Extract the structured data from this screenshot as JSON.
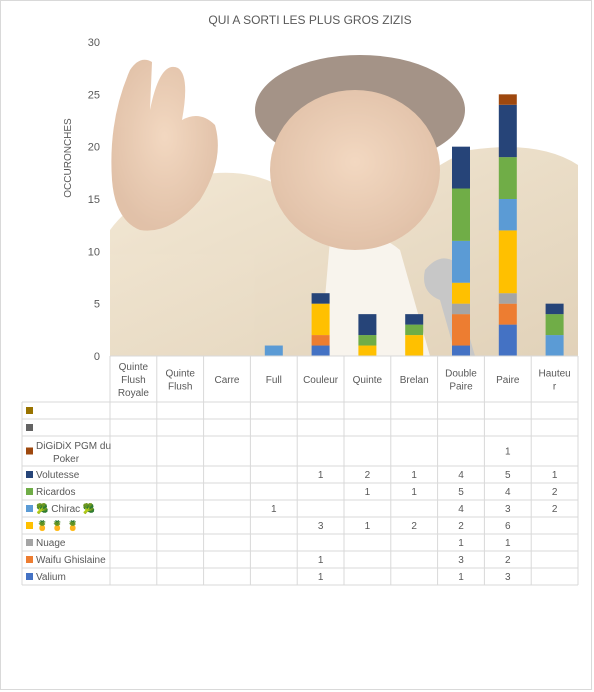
{
  "chart_data": {
    "type": "bar",
    "stacked": true,
    "title": "QUI A SORTI LES PLUS GROS ZIZIS",
    "xlabel": "",
    "ylabel": "OCCURONCHES",
    "ylim": [
      0,
      30
    ],
    "yticks": [
      0,
      5,
      10,
      15,
      20,
      25,
      30
    ],
    "grid": false,
    "legend": "data-table",
    "background_photo": true,
    "categories": [
      [
        "Quinte",
        "Flush",
        "Royale"
      ],
      [
        "Quinte",
        "Flush"
      ],
      [
        "Carre"
      ],
      [
        "Full"
      ],
      [
        "Couleur"
      ],
      [
        "Quinte"
      ],
      [
        "Brelan"
      ],
      [
        "Double",
        "Paire"
      ],
      [
        "Paire"
      ],
      [
        "Hauteu",
        "r"
      ]
    ],
    "series": [
      {
        "name": "Valium",
        "color": "#4472c4",
        "values": [
          null,
          null,
          null,
          null,
          1,
          null,
          null,
          1,
          3,
          null
        ]
      },
      {
        "name": "Waifu Ghislaine",
        "color": "#ed7d31",
        "values": [
          null,
          null,
          null,
          null,
          1,
          null,
          null,
          3,
          2,
          null
        ]
      },
      {
        "name": "Nuage",
        "color": "#a5a5a5",
        "values": [
          null,
          null,
          null,
          null,
          null,
          null,
          null,
          1,
          1,
          null
        ]
      },
      {
        "name": "🍍 🍍 🍍",
        "color": "#ffc000",
        "values": [
          null,
          null,
          null,
          null,
          3,
          1,
          2,
          2,
          6,
          null
        ]
      },
      {
        "name": "🥦 Chirac 🥦",
        "color": "#5b9bd5",
        "values": [
          null,
          null,
          null,
          1,
          null,
          null,
          null,
          4,
          3,
          2
        ]
      },
      {
        "name": "Ricardos",
        "color": "#70ad47",
        "values": [
          null,
          null,
          null,
          null,
          null,
          1,
          1,
          5,
          4,
          2
        ]
      },
      {
        "name": "Volutesse",
        "color": "#264478",
        "values": [
          null,
          null,
          null,
          null,
          1,
          2,
          1,
          4,
          5,
          1
        ]
      },
      {
        "name": [
          "DiGiDiX PGM du",
          "Poker"
        ],
        "color": "#9e480e",
        "values": [
          null,
          null,
          null,
          null,
          null,
          null,
          null,
          null,
          1,
          null
        ]
      },
      {
        "name": "",
        "color": "#636363",
        "values": [
          null,
          null,
          null,
          null,
          null,
          null,
          null,
          null,
          null,
          null
        ]
      },
      {
        "name": "",
        "color": "#997300",
        "values": [
          null,
          null,
          null,
          null,
          null,
          null,
          null,
          null,
          null,
          null
        ]
      }
    ]
  }
}
